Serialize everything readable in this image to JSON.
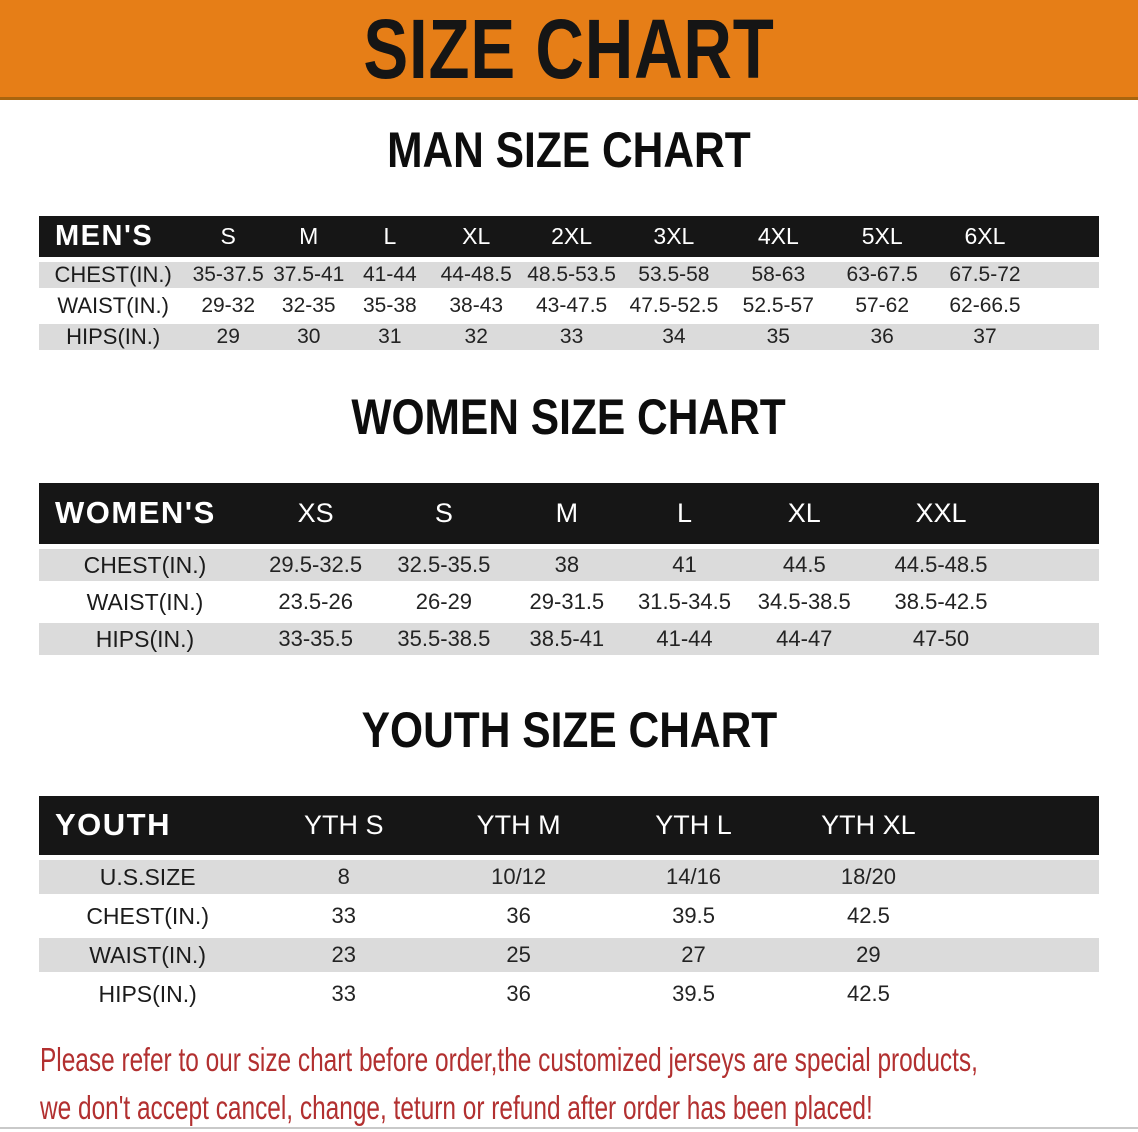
{
  "banner": {
    "title": "SIZE CHART"
  },
  "colors": {
    "banner-orange": "#E67E17",
    "header-black": "#161616",
    "row-gray": "#DBDBDB",
    "disclaimer-red": "#B23030"
  },
  "sections": [
    {
      "title": "MAN SIZE CHART",
      "header_label": "MEN'S",
      "columns": [
        "S",
        "M",
        "L",
        "XL",
        "2XL",
        "3XL",
        "4XL",
        "5XL",
        "6XL"
      ],
      "rows": [
        {
          "label": "CHEST(IN.)",
          "values": [
            "35-37.5",
            "37.5-41",
            "41-44",
            "44-48.5",
            "48.5-53.5",
            "53.5-58",
            "58-63",
            "63-67.5",
            "67.5-72"
          ]
        },
        {
          "label": "WAIST(IN.)",
          "values": [
            "29-32",
            "32-35",
            "35-38",
            "38-43",
            "43-47.5",
            "47.5-52.5",
            "52.5-57",
            "57-62",
            "62-66.5"
          ]
        },
        {
          "label": "HIPS(IN.)",
          "values": [
            "29",
            "30",
            "31",
            "32",
            "33",
            "34",
            "35",
            "36",
            "37"
          ]
        }
      ]
    },
    {
      "title": "WOMEN SIZE CHART",
      "header_label": "WOMEN'S",
      "columns": [
        "XS",
        "S",
        "M",
        "L",
        "XL",
        "XXL"
      ],
      "rows": [
        {
          "label": "CHEST(IN.)",
          "values": [
            "29.5-32.5",
            "32.5-35.5",
            "38",
            "41",
            "44.5",
            "44.5-48.5"
          ]
        },
        {
          "label": "WAIST(IN.)",
          "values": [
            "23.5-26",
            "26-29",
            "29-31.5",
            "31.5-34.5",
            "34.5-38.5",
            "38.5-42.5"
          ]
        },
        {
          "label": "HIPS(IN.)",
          "values": [
            "33-35.5",
            "35.5-38.5",
            "38.5-41",
            "41-44",
            "44-47",
            "47-50"
          ]
        }
      ]
    },
    {
      "title": "YOUTH SIZE CHART",
      "header_label": "YOUTH",
      "columns": [
        "YTH S",
        "YTH M",
        "YTH L",
        "YTH XL"
      ],
      "rows": [
        {
          "label": "U.S.SIZE",
          "values": [
            "8",
            "10/12",
            "14/16",
            "18/20"
          ]
        },
        {
          "label": "CHEST(IN.)",
          "values": [
            "33",
            "36",
            "39.5",
            "42.5"
          ]
        },
        {
          "label": "WAIST(IN.)",
          "values": [
            "23",
            "25",
            "27",
            "29"
          ]
        },
        {
          "label": "HIPS(IN.)",
          "values": [
            "33",
            "36",
            "39.5",
            "42.5"
          ]
        }
      ]
    }
  ],
  "disclaimer": {
    "line1": "Please refer to our size chart before order,the customized jerseys are special products,",
    "line2": "we don't accept cancel, change, teturn or refund after order has been placed!"
  }
}
